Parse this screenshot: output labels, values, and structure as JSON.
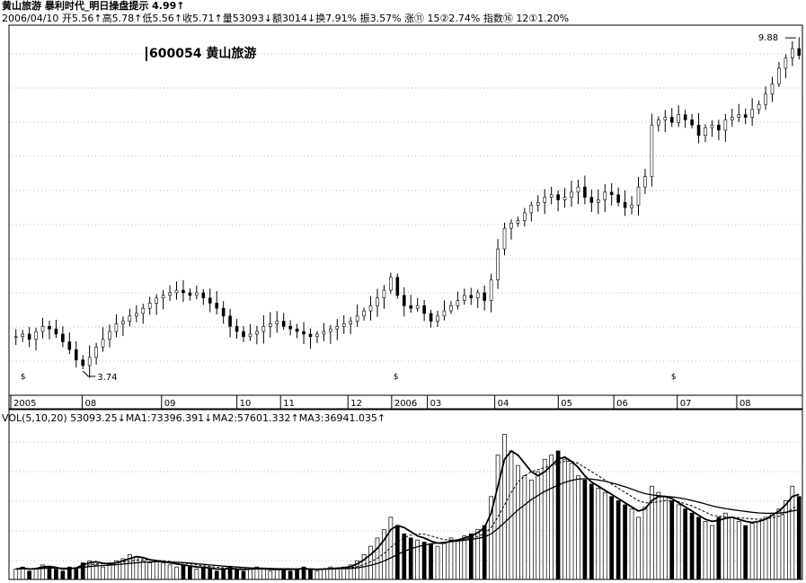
{
  "header": {
    "line1": "黄山旅游 暴利时代_明日操盘提示 4.99↑",
    "line2": "2006/04/10 开5.56↑高5.78↑低5.56↑收5.71↑量53093↓额3014↓换7.91% 振3.57% 涨⑪ 15②2.74% 指数⑯ 12①1.20%"
  },
  "stock_label": "600054 黄山旅游",
  "volume_header": "VOL(5,10,20) 53093.25↓MA1:73396.391↓MA2:57601.332↑MA3:36941.035↑",
  "chart_data": [
    {
      "type": "candlestick",
      "title": "",
      "x_ticks": [
        "2005",
        "08",
        "09",
        "10",
        "11",
        "12",
        "2006",
        "03",
        "04",
        "05",
        "06",
        "07",
        "08"
      ],
      "price_annotations": {
        "high": "9.88",
        "low": "3.74"
      },
      "markers": [
        "$",
        "$",
        "$"
      ],
      "ylim": [
        3.2,
        10.3
      ],
      "grid": true,
      "close_series": [
        4.3,
        4.35,
        4.25,
        4.4,
        4.5,
        4.45,
        4.35,
        4.2,
        4.05,
        3.85,
        3.74,
        3.9,
        4.1,
        4.25,
        4.4,
        4.55,
        4.6,
        4.7,
        4.75,
        4.85,
        4.95,
        5.05,
        5.1,
        5.15,
        5.2,
        5.15,
        5.1,
        5.15,
        5.05,
        4.95,
        4.85,
        4.7,
        4.5,
        4.4,
        4.3,
        4.35,
        4.4,
        4.5,
        4.55,
        4.6,
        4.5,
        4.45,
        4.4,
        4.35,
        4.3,
        4.35,
        4.4,
        4.45,
        4.5,
        4.55,
        4.6,
        4.7,
        4.8,
        4.9,
        5.05,
        5.2,
        5.45,
        5.1,
        4.9,
        4.85,
        4.9,
        4.75,
        4.6,
        4.7,
        4.8,
        4.9,
        5.0,
        5.1,
        5.05,
        5.15,
        5.0,
        5.4,
        6.0,
        6.4,
        6.5,
        6.55,
        6.7,
        6.85,
        6.9,
        7.0,
        7.05,
        6.95,
        7.0,
        7.1,
        7.2,
        7.0,
        6.9,
        6.95,
        7.1,
        7.05,
        6.9,
        6.8,
        6.85,
        7.2,
        7.4,
        8.4,
        8.5,
        8.55,
        8.45,
        8.6,
        8.5,
        8.4,
        8.2,
        8.35,
        8.4,
        8.3,
        8.5,
        8.55,
        8.6,
        8.55,
        8.7,
        8.8,
        9.0,
        9.2,
        9.5,
        9.7,
        9.88,
        9.75
      ]
    },
    {
      "type": "bar",
      "title": "VOL(5,10,20)",
      "values": [
        5,
        6,
        4,
        5,
        7,
        6,
        5,
        4,
        6,
        5,
        8,
        9,
        7,
        6,
        8,
        9,
        10,
        12,
        11,
        9,
        8,
        9,
        8,
        7,
        6,
        7,
        6,
        5,
        6,
        5,
        4,
        5,
        6,
        5,
        4,
        5,
        6,
        5,
        4,
        5,
        5,
        4,
        5,
        6,
        5,
        4,
        5,
        6,
        5,
        6,
        7,
        9,
        12,
        16,
        20,
        24,
        30,
        26,
        22,
        20,
        19,
        18,
        17,
        16,
        18,
        20,
        19,
        21,
        22,
        24,
        26,
        40,
        60,
        70,
        62,
        55,
        50,
        48,
        52,
        58,
        60,
        62,
        58,
        56,
        50,
        48,
        46,
        44,
        42,
        40,
        38,
        36,
        34,
        30,
        35,
        45,
        42,
        40,
        38,
        36,
        34,
        32,
        30,
        28,
        26,
        30,
        32,
        30,
        28,
        26,
        27,
        28,
        30,
        32,
        34,
        38,
        45,
        40
      ],
      "ma_series": [
        {
          "name": "MA1",
          "values": [
            5,
            5.5,
            5,
            5.2,
            6,
            6.3,
            5.8,
            5,
            5.2,
            5.5,
            7,
            8,
            8.5,
            7.8,
            7.5,
            8,
            9,
            10,
            11,
            10.5,
            9.5,
            9,
            8.6,
            8,
            7.5,
            7,
            6.5,
            6,
            5.8,
            5.5,
            5,
            5,
            5.2,
            5,
            4.8,
            5,
            5.2,
            5.1,
            4.9,
            4.8,
            4.9,
            4.8,
            5,
            5.2,
            5,
            4.8,
            5,
            5.2,
            5.4,
            5.6,
            6.2,
            7.5,
            9.5,
            12,
            15,
            19,
            24,
            26,
            25,
            23,
            21,
            20,
            18.5,
            17.5,
            17.5,
            18.5,
            19,
            20,
            21,
            22.5,
            25,
            32,
            45,
            58,
            62,
            60,
            56,
            52,
            50,
            52,
            55,
            58,
            59,
            57,
            54,
            50,
            47,
            45,
            43,
            41,
            39,
            37,
            35,
            33,
            34,
            38,
            40,
            40,
            39,
            37,
            35,
            33,
            31,
            29,
            28,
            28.5,
            29.5,
            30,
            29,
            28,
            27.5,
            28,
            29,
            31,
            33,
            36,
            40,
            41
          ]
        },
        {
          "name": "MA2",
          "values": [
            5,
            5.2,
            5.1,
            5.1,
            5.5,
            5.8,
            5.7,
            5.4,
            5.3,
            5.4,
            6.2,
            7,
            7.5,
            7.6,
            7.8,
            8,
            8.4,
            8.8,
            9.3,
            9.6,
            9.4,
            9.2,
            9,
            8.7,
            8.3,
            7.9,
            7.5,
            7,
            6.6,
            6.3,
            5.9,
            5.6,
            5.5,
            5.3,
            5.2,
            5.1,
            5.1,
            5.1,
            5,
            5,
            5,
            4.9,
            4.9,
            5,
            5,
            5,
            5,
            5.1,
            5.2,
            5.3,
            5.6,
            6.2,
            7.2,
            8.5,
            10.2,
            12.5,
            15.5,
            18,
            20,
            21.5,
            22,
            21.8,
            21,
            20,
            19.2,
            19,
            19,
            19.4,
            20,
            20.8,
            22,
            25,
            30,
            36,
            42,
            47,
            50,
            52,
            53,
            54,
            55,
            56,
            57,
            57,
            56,
            54,
            52,
            50,
            48,
            46,
            44,
            42,
            40,
            38,
            37,
            37,
            37.5,
            38,
            38,
            37.5,
            36.5,
            35.5,
            34,
            32.5,
            31,
            30.5,
            30.2,
            30,
            29.8,
            29.5,
            29.2,
            29,
            29.2,
            29.8,
            30.5,
            32,
            34,
            36
          ]
        },
        {
          "name": "MA3",
          "values": [
            5,
            5.1,
            5.1,
            5.1,
            5.3,
            5.5,
            5.5,
            5.4,
            5.4,
            5.4,
            5.8,
            6.2,
            6.5,
            6.7,
            6.9,
            7.1,
            7.4,
            7.7,
            8,
            8.3,
            8.4,
            8.5,
            8.5,
            8.4,
            8.3,
            8.1,
            7.9,
            7.6,
            7.3,
            7,
            6.7,
            6.4,
            6.2,
            6,
            5.8,
            5.6,
            5.5,
            5.4,
            5.3,
            5.2,
            5.1,
            5.1,
            5,
            5,
            5,
            5,
            5,
            5,
            5.1,
            5.2,
            5.3,
            5.6,
            6.1,
            6.8,
            7.7,
            8.9,
            10.4,
            12,
            13.5,
            14.8,
            15.8,
            16.6,
            17.2,
            17.6,
            17.9,
            18.2,
            18.5,
            18.9,
            19.3,
            19.8,
            20.5,
            22,
            24.5,
            27.5,
            30.5,
            33.5,
            36,
            38.5,
            40.5,
            42.5,
            44,
            45.5,
            46.8,
            47.8,
            48.4,
            48.6,
            48.4,
            48,
            47.4,
            46.6,
            45.7,
            44.7,
            43.6,
            42.4,
            41.4,
            40.8,
            40.4,
            40.1,
            39.8,
            39.4,
            38.8,
            38.1,
            37.3,
            36.4,
            35.5,
            34.8,
            34.2,
            33.7,
            33.2,
            32.8,
            32.4,
            32.1,
            31.9,
            31.9,
            32,
            32.4,
            33,
            33.6
          ]
        }
      ]
    }
  ]
}
